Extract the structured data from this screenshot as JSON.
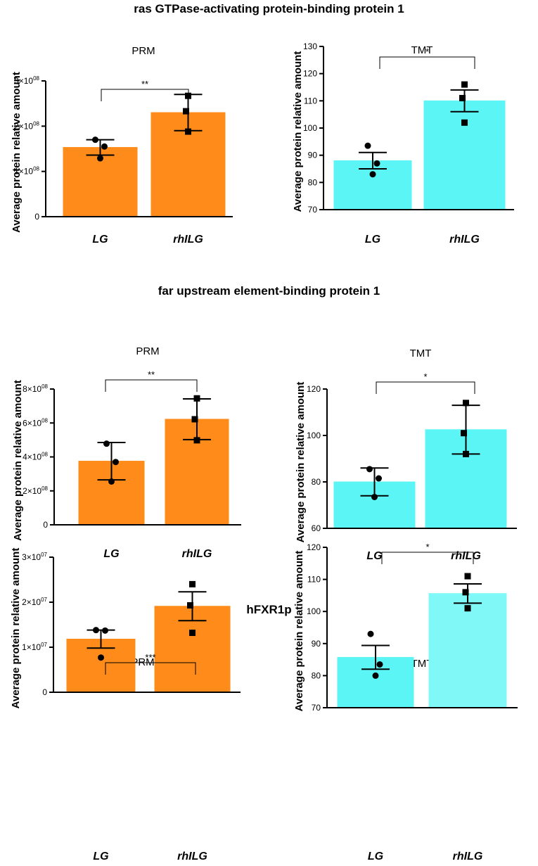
{
  "figure": {
    "colors": {
      "prm_bar": "#FF8C1A",
      "tmt_bar": "#5CF5F5",
      "tmt_bar_light": "#80F8F8",
      "ink": "#000000"
    }
  },
  "chart_data": [
    {
      "group": "ras GTPase-activating protein-binding protein 1",
      "type": "bar",
      "title": "PRM",
      "ylabel": "Average protein relative amount",
      "xlabel": "",
      "categories": [
        "LG",
        "rhILG"
      ],
      "values": [
        153000000,
        230000000
      ],
      "errors": [
        17000000,
        40000000
      ],
      "points": [
        [
          129000000,
          155000000,
          170000000
        ],
        [
          188000000,
          233000000,
          267000000
        ]
      ],
      "ylim": [
        0,
        300000000
      ],
      "yticks": [
        {
          "v": 0,
          "base": "0",
          "exp": ""
        },
        {
          "v": 100000000,
          "base": "1×10",
          "exp": "08"
        },
        {
          "v": 200000000,
          "base": "2×10",
          "exp": "08"
        },
        {
          "v": 300000000,
          "base": "3×10",
          "exp": "08"
        }
      ],
      "significance": "**"
    },
    {
      "group": "ras GTPase-activating protein-binding protein 1",
      "type": "bar",
      "title": "TMT",
      "ylabel": "Average protein relative amount",
      "xlabel": "",
      "categories": [
        "LG",
        "rhILG"
      ],
      "values": [
        88,
        110
      ],
      "errors": [
        3,
        4
      ],
      "points": [
        [
          83,
          87,
          93.5
        ],
        [
          102,
          111,
          116
        ]
      ],
      "ylim": [
        70,
        130
      ],
      "yticks": [
        {
          "v": 70,
          "base": "70",
          "exp": ""
        },
        {
          "v": 80,
          "base": "80",
          "exp": ""
        },
        {
          "v": 90,
          "base": "90",
          "exp": ""
        },
        {
          "v": 100,
          "base": "100",
          "exp": ""
        },
        {
          "v": 110,
          "base": "110",
          "exp": ""
        },
        {
          "v": 120,
          "base": "120",
          "exp": ""
        },
        {
          "v": 130,
          "base": "130",
          "exp": ""
        }
      ],
      "significance": "*"
    },
    {
      "group": "far upstream element-binding protein 1",
      "type": "bar",
      "title": "PRM",
      "ylabel": "Average protein relative amount",
      "xlabel": "",
      "categories": [
        "LG",
        "rhILG"
      ],
      "values": [
        375000000,
        622000000
      ],
      "errors": [
        110000000,
        120000000
      ],
      "points": [
        [
          255000000,
          370000000,
          478000000
        ],
        [
          498000000,
          622000000,
          745000000
        ]
      ],
      "ylim": [
        0,
        800000000
      ],
      "yticks": [
        {
          "v": 0,
          "base": "0",
          "exp": ""
        },
        {
          "v": 200000000,
          "base": "2×10",
          "exp": "08"
        },
        {
          "v": 400000000,
          "base": "4×10",
          "exp": "08"
        },
        {
          "v": 600000000,
          "base": "6×10",
          "exp": "08"
        },
        {
          "v": 800000000,
          "base": "8×10",
          "exp": "08"
        }
      ],
      "significance": "**"
    },
    {
      "group": "far upstream element-binding protein 1",
      "type": "bar",
      "title": "TMT",
      "ylabel": "Average protein relative amount",
      "xlabel": "",
      "categories": [
        "LG",
        "rhILG"
      ],
      "values": [
        80,
        102.5
      ],
      "errors": [
        6,
        10.5
      ],
      "points": [
        [
          73.5,
          81.5,
          85.5
        ],
        [
          92,
          101,
          114
        ]
      ],
      "ylim": [
        60,
        120
      ],
      "yticks": [
        {
          "v": 60,
          "base": "60",
          "exp": ""
        },
        {
          "v": 80,
          "base": "80",
          "exp": ""
        },
        {
          "v": 100,
          "base": "100",
          "exp": ""
        },
        {
          "v": 120,
          "base": "120",
          "exp": ""
        }
      ],
      "significance": "*"
    },
    {
      "group": "hFXR1p",
      "type": "bar",
      "title": "PRM",
      "ylabel": "Average protein relative amount",
      "xlabel": "",
      "categories": [
        "LG",
        "rhILG"
      ],
      "values": [
        11800000,
        19100000
      ],
      "errors": [
        2000000,
        3200000
      ],
      "points": [
        [
          7700000,
          13700000,
          13800000
        ],
        [
          13200000,
          19300000,
          24000000
        ]
      ],
      "ylim": [
        0,
        30000000
      ],
      "yticks": [
        {
          "v": 0,
          "base": "0",
          "exp": ""
        },
        {
          "v": 10000000,
          "base": "1×10",
          "exp": "07"
        },
        {
          "v": 20000000,
          "base": "2×10",
          "exp": "07"
        },
        {
          "v": 30000000,
          "base": "3×10",
          "exp": "07"
        }
      ],
      "significance": "***"
    },
    {
      "group": "hFXR1p",
      "type": "bar",
      "title": "TMT",
      "ylabel": "Average protein relative amount",
      "xlabel": "",
      "categories": [
        "LG",
        "rhILG"
      ],
      "values": [
        85.7,
        105.6
      ],
      "errors": [
        3.7,
        3
      ],
      "points": [
        [
          80,
          83.5,
          93
        ],
        [
          101,
          106,
          111
        ]
      ],
      "ylim": [
        70,
        120
      ],
      "yticks": [
        {
          "v": 70,
          "base": "70",
          "exp": ""
        },
        {
          "v": 80,
          "base": "80",
          "exp": ""
        },
        {
          "v": 90,
          "base": "90",
          "exp": ""
        },
        {
          "v": 100,
          "base": "100",
          "exp": ""
        },
        {
          "v": 110,
          "base": "110",
          "exp": ""
        },
        {
          "v": 120,
          "base": "120",
          "exp": ""
        }
      ],
      "significance": "*"
    }
  ]
}
